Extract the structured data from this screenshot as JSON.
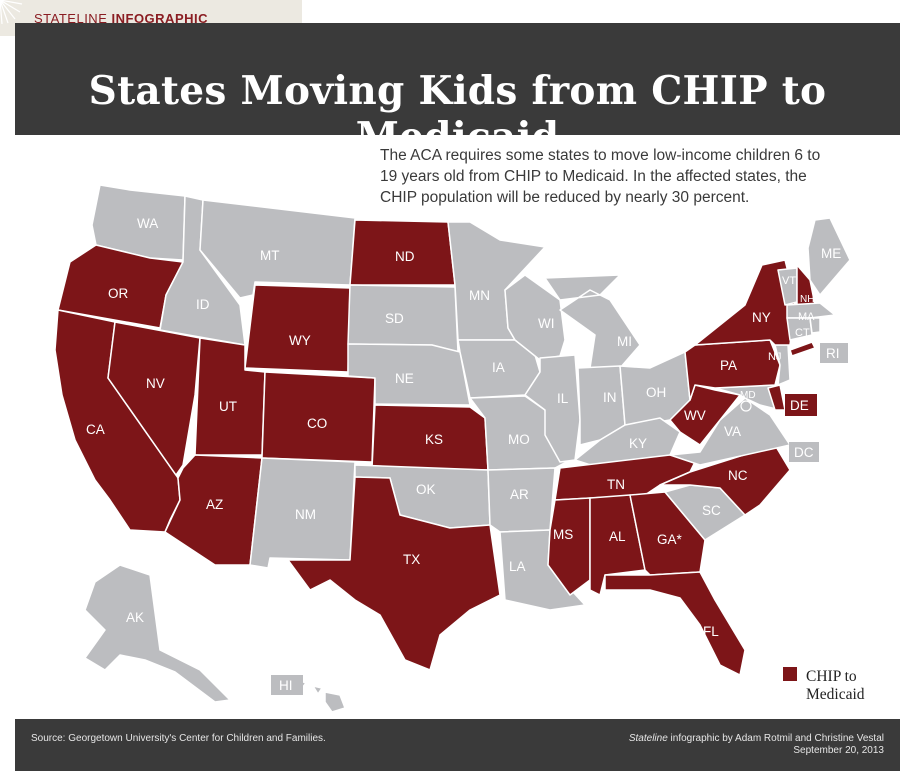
{
  "header": {
    "tag_prefix": "STATELINE",
    "tag_bold": "INFOGRAPHIC"
  },
  "title": "States Moving Kids from CHIP to Medicaid",
  "intro": "The ACA requires some states to move low-income children 6 to 19 years old from CHIP to Medicaid. In the affected states, the CHIP population will be reduced by nearly 30 percent.",
  "colors": {
    "chip_to_medicaid": "#7d1518",
    "other_state": "#bcbdc0",
    "header_bar": "#3a3a3a"
  },
  "legend": {
    "line1": "CHIP to",
    "line2": "Medicaid"
  },
  "map": {
    "states_chip_to_medicaid": [
      "OR",
      "CA",
      "NV",
      "AZ",
      "UT",
      "WY",
      "CO",
      "ND",
      "KS",
      "TX",
      "MS",
      "AL",
      "GA",
      "FL",
      "TN",
      "NC",
      "WV",
      "PA",
      "NY",
      "NH",
      "DE"
    ],
    "labels": {
      "WA": "WA",
      "OR": "OR",
      "CA": "CA",
      "ID": "ID",
      "NV": "NV",
      "AZ": "AZ",
      "UT": "UT",
      "MT": "MT",
      "WY": "WY",
      "CO": "CO",
      "NM": "NM",
      "ND": "ND",
      "SD": "SD",
      "NE": "NE",
      "KS": "KS",
      "OK": "OK",
      "TX": "TX",
      "MN": "MN",
      "IA": "IA",
      "MO": "MO",
      "AR": "AR",
      "LA": "LA",
      "WI": "WI",
      "IL": "IL",
      "MI": "MI",
      "IN": "IN",
      "OH": "OH",
      "KY": "KY",
      "TN": "TN",
      "MS": "MS",
      "AL": "AL",
      "GA": "GA*",
      "FL": "FL",
      "SC": "SC",
      "NC": "NC",
      "VA": "VA",
      "WV": "WV",
      "PA": "PA",
      "NY": "NY",
      "VT": "VT",
      "NH": "NH",
      "ME": "ME",
      "MA": "MA",
      "CT": "CT",
      "RI": "RI",
      "NJ": "NJ",
      "DE": "DE",
      "MD": "MD",
      "DC": "DC",
      "AK": "AK",
      "HI": "HI"
    }
  },
  "footer": {
    "source": "Source: Georgetown University's Center for Children and Families.",
    "credit_italic": "Stateline",
    "credit_rest": " infographic by Adam Rotmil and Christine Vestal",
    "date": "September 20, 2013"
  }
}
